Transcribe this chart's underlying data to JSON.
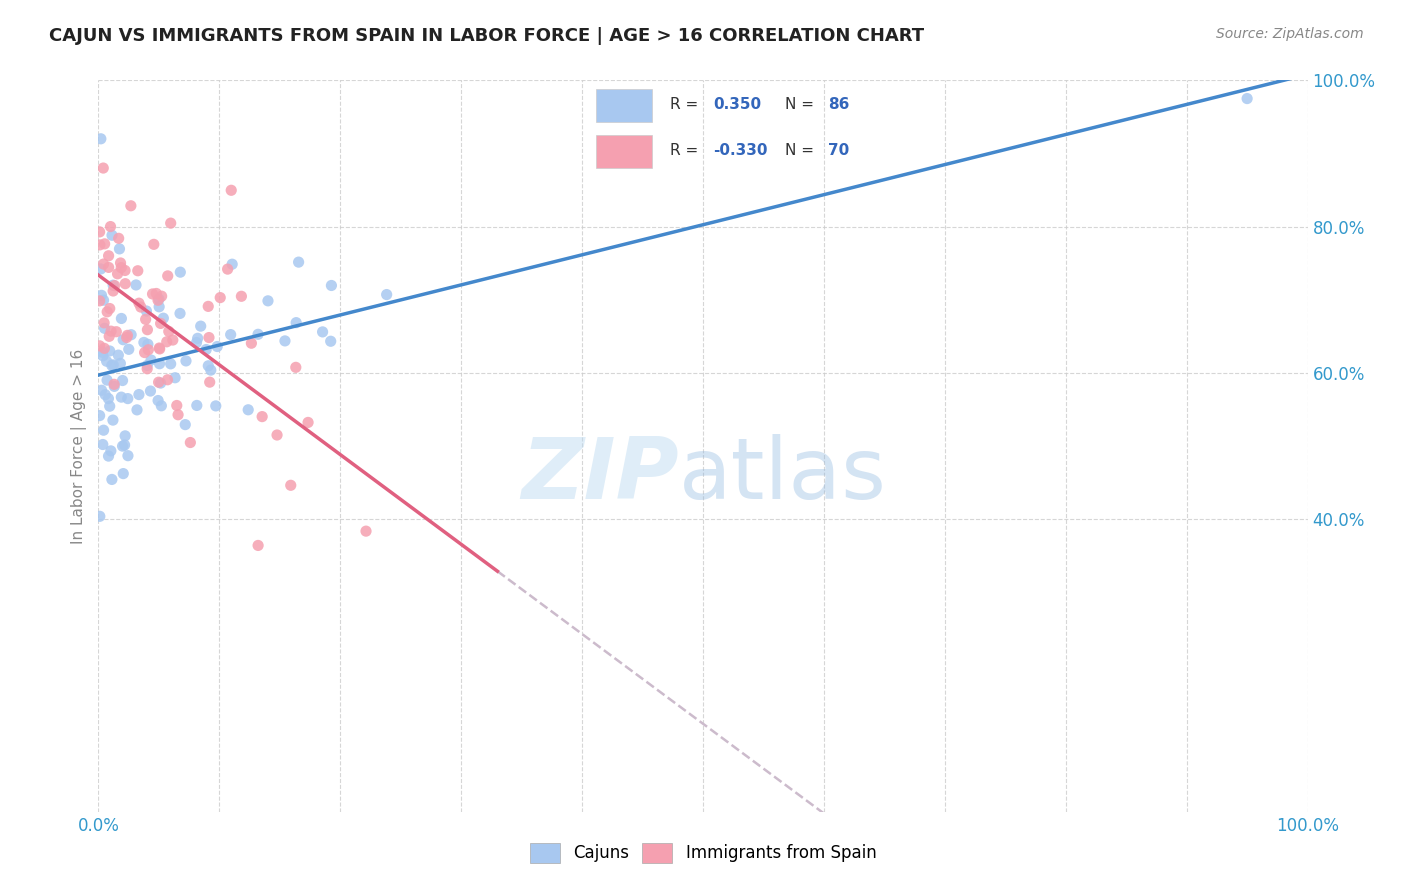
{
  "title": "CAJUN VS IMMIGRANTS FROM SPAIN IN LABOR FORCE | AGE > 16 CORRELATION CHART",
  "source": "Source: ZipAtlas.com",
  "ylabel": "In Labor Force | Age > 16",
  "xlim": [
    0.0,
    1.0
  ],
  "ylim": [
    0.0,
    1.0
  ],
  "cajun_R": 0.35,
  "cajun_N": 86,
  "spain_R": -0.33,
  "spain_N": 70,
  "cajun_color": "#a8c8f0",
  "spain_color": "#f5a0b0",
  "cajun_line_color": "#4488cc",
  "spain_line_color": "#e06080",
  "spain_dashed_color": "#ccbbcc",
  "background_color": "#ffffff",
  "legend_text_color": "#3366bb",
  "axis_label_color": "#3399cc",
  "ylabel_color": "#888888"
}
